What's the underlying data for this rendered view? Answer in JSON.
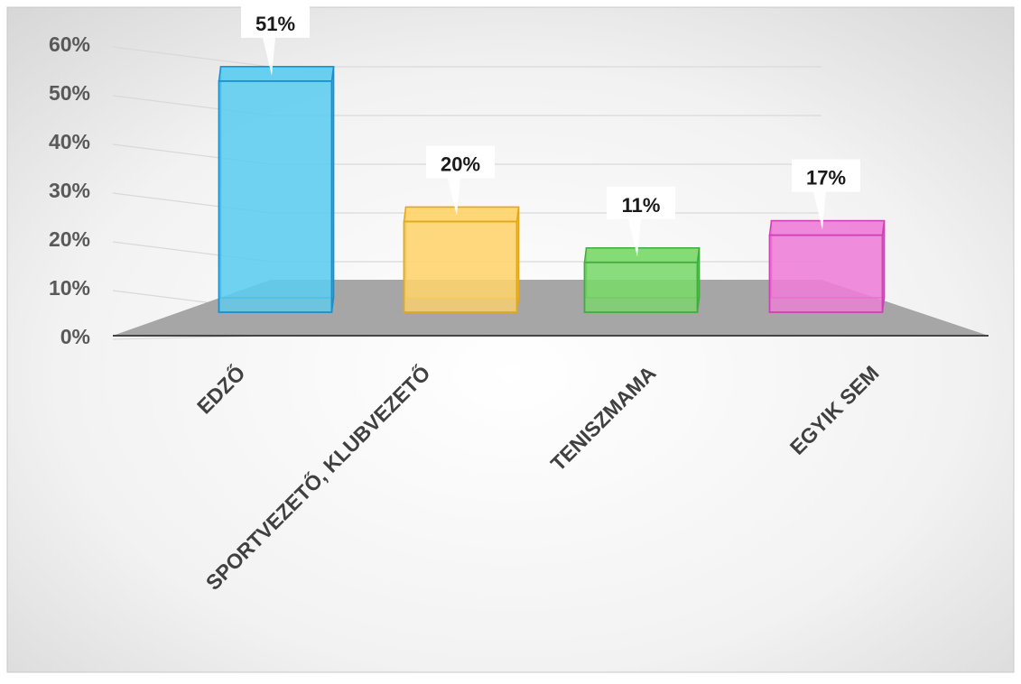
{
  "chart_data": {
    "type": "bar",
    "title": "",
    "xlabel": "",
    "ylabel": "",
    "ylim": [
      0,
      60
    ],
    "y_tick_values": [
      0,
      10,
      20,
      30,
      40,
      50,
      60
    ],
    "y_tick_labels": [
      "0%",
      "10%",
      "20%",
      "30%",
      "40%",
      "50%",
      "60%"
    ],
    "categories": [
      "EDZŐ",
      "SPORTVEZETŐ, KLUBVEZETŐ",
      "TENISZMAMA",
      "EGYIK SEM"
    ],
    "values": [
      51,
      20,
      11,
      17
    ],
    "data_labels": [
      "51%",
      "20%",
      "11%",
      "17%"
    ],
    "colors": [
      "#5ccdf0",
      "#ffd36b",
      "#7ad96a",
      "#f07ed8"
    ],
    "edge_colors": [
      "#1a8fd0",
      "#e0a81a",
      "#3fae3f",
      "#d040b8"
    ],
    "grid": true,
    "legend": "none",
    "style": "3d-transparent-columns"
  }
}
